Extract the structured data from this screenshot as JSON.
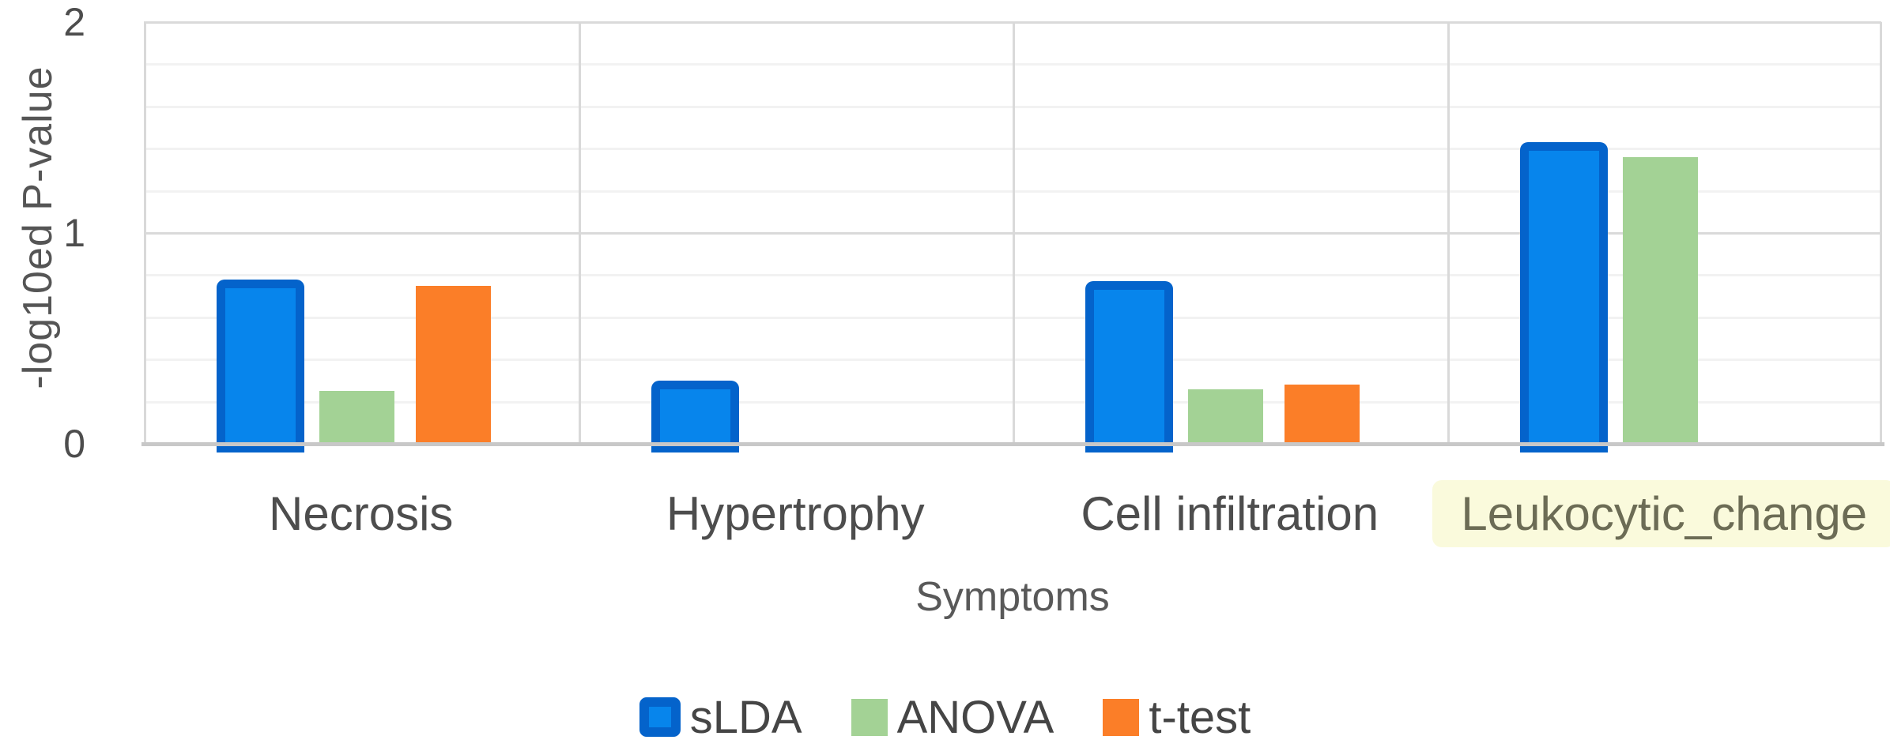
{
  "chart_data": {
    "type": "bar",
    "title": "",
    "xlabel": "Symptoms",
    "ylabel": "-log10ed P-value",
    "categories": [
      "Necrosis",
      "Hypertrophy",
      "Cell infiltration",
      "Leukocytic_change"
    ],
    "series": [
      {
        "name": "sLDA",
        "values": [
          0.78,
          0.3,
          0.77,
          1.43
        ],
        "fill": "#0785EC",
        "border": "#0463CB",
        "styled": true
      },
      {
        "name": "ANOVA",
        "values": [
          0.25,
          0.0,
          0.26,
          1.36
        ],
        "fill": "#A3D295",
        "border": null,
        "styled": false
      },
      {
        "name": "t-test",
        "values": [
          0.75,
          0.0,
          0.28,
          0.0
        ],
        "fill": "#FB7E28",
        "border": null,
        "styled": false
      }
    ],
    "ylim": [
      0,
      2
    ],
    "yticks": [
      "0",
      "1",
      "2"
    ],
    "y_minor_step": 0.2,
    "grid": "horizontal-minor-and-major, vertical category separators",
    "legend_position": "bottom-center",
    "highlighted_category": {
      "label": "Leukocytic_change",
      "background": "#FAFADC",
      "text_color": "#6C6C55"
    }
  }
}
